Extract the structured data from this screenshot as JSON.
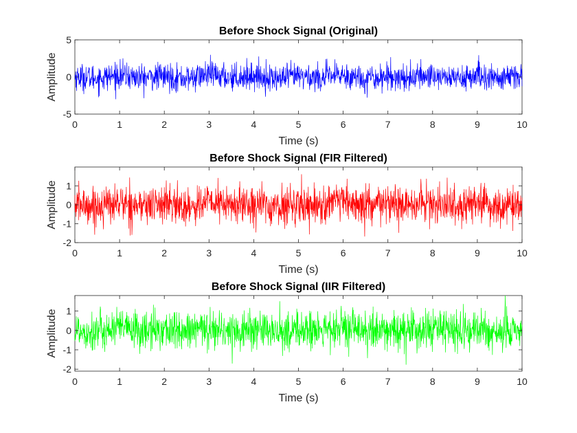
{
  "chart_data": [
    {
      "type": "line",
      "title": "Before Shock Signal (Original)",
      "xlabel": "Time (s)",
      "ylabel": "Amplitude",
      "xlim": [
        0,
        10
      ],
      "ylim": [
        -5,
        5
      ],
      "xticks": [
        0,
        1,
        2,
        3,
        4,
        5,
        6,
        7,
        8,
        9,
        10
      ],
      "yticks": [
        -5,
        0,
        5
      ],
      "color": "#0000ff",
      "grid": false,
      "series": [
        {
          "x": [
            0,
            0.5,
            1,
            1.5,
            2,
            2.5,
            3,
            3.5,
            4,
            4.5,
            5,
            5.5,
            6,
            6.5,
            7,
            7.5,
            8,
            8.5,
            9,
            9.5,
            10
          ],
          "values": [
            0.3,
            -1.2,
            1.5,
            -0.8,
            0.6,
            -1.6,
            2.2,
            -0.4,
            1.1,
            -1.9,
            0.8,
            -0.5,
            1.7,
            -1.3,
            0.4,
            -0.9,
            1.4,
            -1.1,
            0.7,
            -1.4,
            0.2
          ]
        }
      ],
      "envelope": {
        "min": -4.0,
        "max": 3.8,
        "typical_std": 0.9
      }
    },
    {
      "type": "line",
      "title": "Before Shock Signal (FIR Filtered)",
      "xlabel": "Time (s)",
      "ylabel": "Amplitude",
      "xlim": [
        0,
        10
      ],
      "ylim": [
        -2,
        2
      ],
      "xticks": [
        0,
        1,
        2,
        3,
        4,
        5,
        6,
        7,
        8,
        9,
        10
      ],
      "yticks": [
        -2,
        -1,
        0,
        1
      ],
      "color": "#ff0000",
      "grid": false,
      "series": [
        {
          "x": [
            0,
            0.5,
            1,
            1.5,
            2,
            2.5,
            3,
            3.5,
            4,
            4.5,
            5,
            5.5,
            6,
            6.5,
            7,
            7.5,
            8,
            8.5,
            9,
            9.5,
            10
          ],
          "values": [
            0.1,
            -0.6,
            0.8,
            -0.4,
            0.5,
            -0.9,
            1.1,
            -0.3,
            0.6,
            -1.0,
            0.4,
            -0.2,
            0.9,
            -0.7,
            0.3,
            -0.5,
            0.7,
            -0.6,
            0.4,
            -0.8,
            0.1
          ]
        }
      ],
      "envelope": {
        "min": -2.0,
        "max": 1.9,
        "typical_std": 0.5
      }
    },
    {
      "type": "line",
      "title": "Before Shock Signal (IIR Filtered)",
      "xlabel": "Time (s)",
      "ylabel": "Amplitude",
      "xlim": [
        0,
        10
      ],
      "ylim": [
        -2.1,
        1.8
      ],
      "xticks": [
        0,
        1,
        2,
        3,
        4,
        5,
        6,
        7,
        8,
        9,
        10
      ],
      "yticks": [
        -2,
        -1,
        0,
        1
      ],
      "color": "#00ff00",
      "grid": false,
      "series": [
        {
          "x": [
            0,
            0.5,
            1,
            1.5,
            2,
            2.5,
            3,
            3.5,
            4,
            4.5,
            5,
            5.5,
            6,
            6.5,
            7,
            7.5,
            8,
            8.5,
            9,
            9.5,
            10
          ],
          "values": [
            0.2,
            -0.5,
            0.9,
            -0.3,
            0.4,
            -0.8,
            1.0,
            -0.4,
            0.5,
            -0.9,
            0.3,
            -0.3,
            0.8,
            -0.6,
            0.2,
            -0.4,
            0.6,
            -0.7,
            0.5,
            -0.7,
            0.0
          ]
        }
      ],
      "envelope": {
        "min": -2.1,
        "max": 1.8,
        "typical_std": 0.5
      }
    }
  ]
}
